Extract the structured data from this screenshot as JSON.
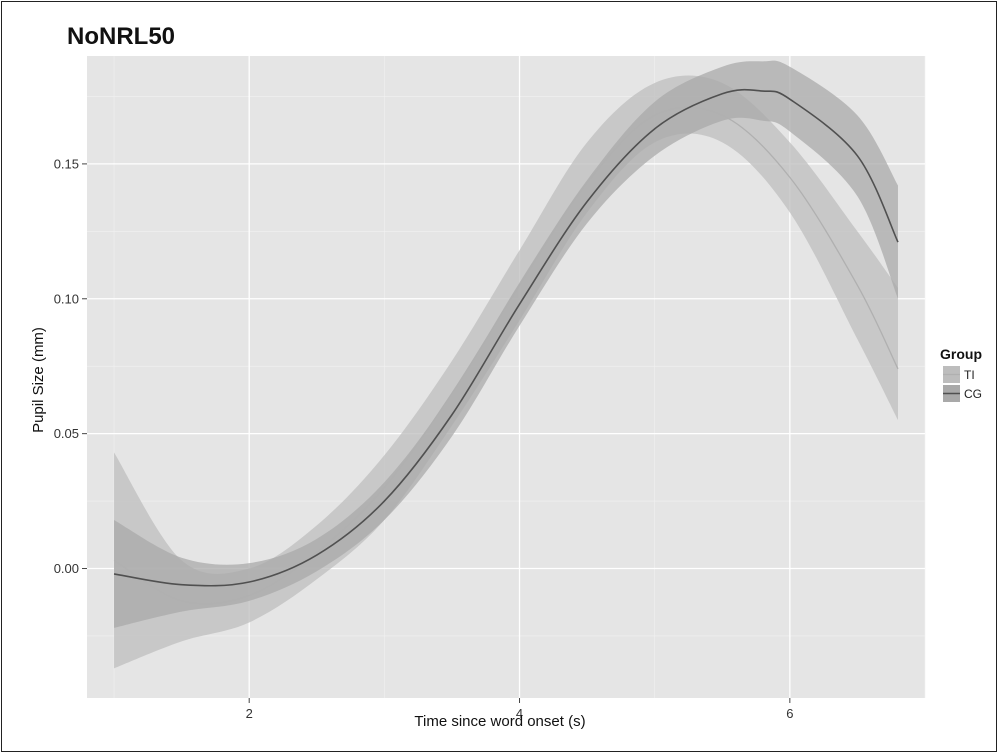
{
  "chart_data": {
    "type": "line",
    "title": "NoNRL50",
    "xlabel": "Time since word onset (s)",
    "ylabel": "Pupil Size (mm)",
    "xlim": [
      0.8,
      7.0
    ],
    "ylim": [
      -0.048,
      0.19
    ],
    "x_ticks": [
      2,
      4,
      6
    ],
    "x_tick_labels": [
      "2",
      "4",
      "6"
    ],
    "y_ticks": [
      0.0,
      0.05,
      0.1,
      0.15
    ],
    "y_tick_labels": [
      "0.00",
      "0.05",
      "0.10",
      "0.15"
    ],
    "grid": true,
    "legend": {
      "title": "Group",
      "position": "right",
      "entries": [
        "TI",
        "CG"
      ]
    },
    "series": [
      {
        "name": "TI",
        "color": "#b0b0b0",
        "band_color": "#bdbdbd",
        "x": [
          1.0,
          1.5,
          2.0,
          2.5,
          3.0,
          3.5,
          4.0,
          4.5,
          5.0,
          5.5,
          6.0,
          6.5,
          6.8
        ],
        "y": [
          0.003,
          -0.012,
          -0.01,
          0.006,
          0.03,
          0.065,
          0.105,
          0.143,
          0.168,
          0.168,
          0.145,
          0.105,
          0.074
        ],
        "lower": [
          -0.037,
          -0.027,
          -0.02,
          -0.004,
          0.018,
          0.053,
          0.092,
          0.132,
          0.158,
          0.158,
          0.132,
          0.085,
          0.055
        ],
        "upper": [
          0.043,
          0.003,
          0.0,
          0.016,
          0.042,
          0.077,
          0.118,
          0.158,
          0.18,
          0.18,
          0.158,
          0.125,
          0.104
        ]
      },
      {
        "name": "CG",
        "color": "#505050",
        "band_color": "#a9a9a9",
        "x": [
          1.0,
          1.5,
          2.0,
          2.5,
          3.0,
          3.5,
          4.0,
          4.5,
          5.0,
          5.5,
          5.8,
          6.0,
          6.5,
          6.8
        ],
        "y": [
          -0.002,
          -0.006,
          -0.005,
          0.005,
          0.025,
          0.057,
          0.098,
          0.136,
          0.163,
          0.176,
          0.177,
          0.174,
          0.153,
          0.121
        ],
        "lower": [
          -0.022,
          -0.016,
          -0.012,
          -0.001,
          0.018,
          0.049,
          0.09,
          0.128,
          0.153,
          0.166,
          0.166,
          0.162,
          0.138,
          0.1
        ],
        "upper": [
          0.018,
          0.004,
          0.002,
          0.011,
          0.032,
          0.065,
          0.106,
          0.144,
          0.173,
          0.186,
          0.188,
          0.186,
          0.168,
          0.142
        ]
      }
    ]
  }
}
